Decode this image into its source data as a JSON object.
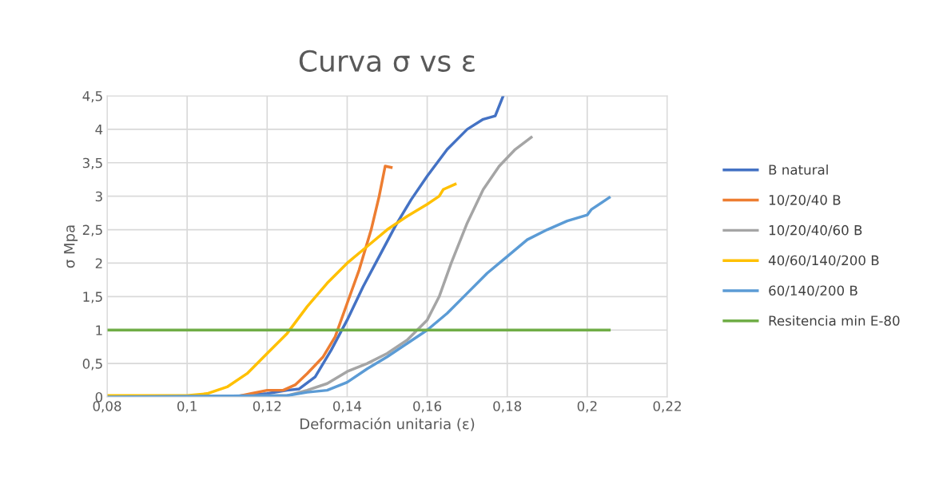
{
  "chart_data": {
    "type": "line",
    "title": "Curva σ vs ε",
    "xlabel": "Deformación unitaria (ε)",
    "ylabel": "σ Mpa",
    "xlim": [
      0.08,
      0.22
    ],
    "ylim": [
      0,
      4.5
    ],
    "xticks": [
      {
        "value": 0.08,
        "label": "0,08"
      },
      {
        "value": 0.1,
        "label": "0,1"
      },
      {
        "value": 0.12,
        "label": "0,12"
      },
      {
        "value": 0.14,
        "label": "0,14"
      },
      {
        "value": 0.16,
        "label": "0,16"
      },
      {
        "value": 0.18,
        "label": "0,18"
      },
      {
        "value": 0.2,
        "label": "0,2"
      },
      {
        "value": 0.22,
        "label": "0,22"
      }
    ],
    "yticks": [
      0,
      {
        "value": 0.5,
        "label": "0,5"
      },
      1,
      {
        "value": 1.5,
        "label": "1,5"
      },
      2,
      {
        "value": 2.5,
        "label": "2,5"
      },
      3,
      {
        "value": 3.5,
        "label": "3,5"
      },
      4,
      {
        "value": 4.5,
        "label": "4,5"
      }
    ],
    "grid": true,
    "legend": "right",
    "marker": "none",
    "line_style": "solid",
    "series": [
      {
        "name": "B natural",
        "color": "#4472c4",
        "x": [
          0.08,
          0.11,
          0.12,
          0.125,
          0.128,
          0.132,
          0.136,
          0.14,
          0.144,
          0.148,
          0.152,
          0.156,
          0.16,
          0.165,
          0.17,
          0.174,
          0.177,
          0.179
        ],
        "values": [
          0,
          0,
          0.05,
          0.1,
          0.12,
          0.3,
          0.7,
          1.15,
          1.65,
          2.1,
          2.55,
          2.95,
          3.3,
          3.7,
          4.0,
          4.15,
          4.2,
          4.5
        ]
      },
      {
        "name": "10/20/40 B",
        "color": "#ed7d31",
        "x": [
          0.08,
          0.112,
          0.116,
          0.12,
          0.124,
          0.127,
          0.13,
          0.134,
          0.137,
          0.14,
          0.143,
          0.146,
          0.148,
          0.1495,
          0.151
        ],
        "values": [
          0,
          0,
          0.05,
          0.1,
          0.1,
          0.18,
          0.35,
          0.6,
          0.9,
          1.4,
          1.9,
          2.5,
          3.0,
          3.45,
          3.43
        ]
      },
      {
        "name": "10/20/40/60 B",
        "color": "#a5a5a5",
        "x": [
          0.08,
          0.125,
          0.13,
          0.135,
          0.14,
          0.145,
          0.15,
          0.155,
          0.16,
          0.163,
          0.166,
          0.17,
          0.174,
          0.178,
          0.182,
          0.186
        ],
        "values": [
          0,
          0.02,
          0.1,
          0.2,
          0.38,
          0.5,
          0.65,
          0.85,
          1.15,
          1.5,
          2.0,
          2.6,
          3.1,
          3.45,
          3.7,
          3.88
        ]
      },
      {
        "name": "40/60/140/200 B",
        "color": "#ffc000",
        "x": [
          0.08,
          0.1,
          0.105,
          0.11,
          0.115,
          0.12,
          0.125,
          0.13,
          0.135,
          0.14,
          0.145,
          0.15,
          0.155,
          0.16,
          0.163,
          0.164,
          0.167
        ],
        "values": [
          0.02,
          0.02,
          0.05,
          0.15,
          0.35,
          0.65,
          0.95,
          1.35,
          1.7,
          2.0,
          2.25,
          2.5,
          2.7,
          2.88,
          3.0,
          3.1,
          3.18
        ]
      },
      {
        "name": "60/140/200 B",
        "color": "#5b9bd5",
        "x": [
          0.08,
          0.125,
          0.13,
          0.135,
          0.14,
          0.145,
          0.15,
          0.155,
          0.16,
          0.165,
          0.17,
          0.175,
          0.18,
          0.185,
          0.19,
          0.195,
          0.2,
          0.201,
          0.2055
        ],
        "values": [
          0,
          0.02,
          0.07,
          0.1,
          0.22,
          0.42,
          0.6,
          0.8,
          1.0,
          1.25,
          1.55,
          1.85,
          2.1,
          2.35,
          2.5,
          2.63,
          2.72,
          2.8,
          2.98
        ]
      },
      {
        "name": "Resitencia min E-80",
        "color": "#70ad47",
        "x": [
          0.08,
          0.2055
        ],
        "values": [
          1,
          1
        ]
      }
    ]
  }
}
